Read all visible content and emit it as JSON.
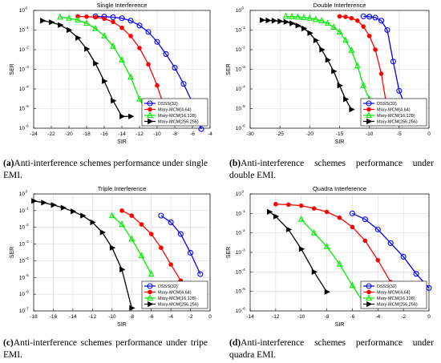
{
  "legend_labels": [
    "DSSS(32)",
    "Mary-MCM(4,64)",
    "Mary-MCM(16,128)",
    "Mary-MCM(256,256)"
  ],
  "series_colors": [
    "#0000ff",
    "#ff0000",
    "#00ee00",
    "#000000"
  ],
  "markers": [
    "circle",
    "asterisk",
    "triangle-up",
    "triangle-right"
  ],
  "captions": [
    {
      "tag": "(a)",
      "text": "Anti-interference schemes performance under single EMI."
    },
    {
      "tag": "(b)",
      "text": "Anti-interference schemes performance under double EMI."
    },
    {
      "tag": "(c)",
      "text": "Anti-interference schemes performance under tripe EMI."
    },
    {
      "tag": "(d)",
      "text": "Anti-interference schemes performance under quadra EMI."
    }
  ],
  "chart_data": [
    {
      "type": "line",
      "title": "Single Interference",
      "xlabel": "SIR",
      "ylabel": "SER",
      "xlim": [
        -24,
        -4
      ],
      "xticks": [
        -24,
        -22,
        -20,
        -18,
        -16,
        -14,
        -12,
        -10,
        -8,
        -6,
        -4
      ],
      "yscale": "log",
      "ylim_exp": [
        -6,
        0
      ],
      "grid": true,
      "legend": "bottom-right",
      "series": [
        {
          "name": "DSSS(32)",
          "x": [
            -17,
            -16,
            -15,
            -14,
            -13,
            -12,
            -11,
            -10,
            -9,
            -8,
            -7,
            -6,
            -5
          ],
          "y": [
            0.5,
            0.48,
            0.45,
            0.4,
            0.3,
            0.17,
            0.08,
            0.025,
            0.006,
            0.0012,
            0.00018,
            2e-05,
            9e-07
          ]
        },
        {
          "name": "Mary-MCM(4,64)",
          "x": [
            -19,
            -18,
            -17,
            -16,
            -15,
            -14,
            -13,
            -12,
            -11,
            -10,
            -9
          ],
          "y": [
            0.5,
            0.48,
            0.45,
            0.38,
            0.26,
            0.13,
            0.05,
            0.012,
            0.0018,
            0.00015,
            6e-06
          ]
        },
        {
          "name": "Mary-MCM(16,128)",
          "x": [
            -21,
            -20,
            -19,
            -18,
            -17,
            -16,
            -15,
            -14,
            -13,
            -12,
            -11
          ],
          "y": [
            0.45,
            0.4,
            0.32,
            0.22,
            0.12,
            0.05,
            0.015,
            0.003,
            0.0004,
            3e-05,
            5e-06
          ]
        },
        {
          "name": "Mary-MCM(256,256)",
          "x": [
            -23,
            -22,
            -21,
            -20,
            -19,
            -18,
            -17,
            -16,
            -15,
            -14,
            -13
          ],
          "y": [
            0.3,
            0.25,
            0.18,
            0.1,
            0.04,
            0.011,
            0.002,
            0.00025,
            2.5e-05,
            4e-06,
            4e-06
          ]
        }
      ]
    },
    {
      "type": "line",
      "title": "Double Interference",
      "xlabel": "SIR",
      "ylabel": "SER",
      "xlim": [
        -30,
        0
      ],
      "xticks": [
        -30,
        -25,
        -20,
        -15,
        -10,
        -5,
        0
      ],
      "yscale": "log",
      "ylim_exp": [
        -6,
        0
      ],
      "grid": true,
      "legend": "bottom-right",
      "series": [
        {
          "name": "DSSS(32)",
          "x": [
            -11,
            -10,
            -9,
            -8,
            -7,
            -6,
            -5,
            -4
          ],
          "y": [
            0.5,
            0.48,
            0.43,
            0.3,
            0.1,
            0.0025,
            8e-05,
            1.5e-05
          ]
        },
        {
          "name": "Mary-MCM(4,64)",
          "x": [
            -15,
            -14,
            -13,
            -12,
            -11,
            -10,
            -9,
            -8,
            -7
          ],
          "y": [
            0.5,
            0.47,
            0.4,
            0.3,
            0.15,
            0.05,
            0.01,
            0.0006,
            9e-06
          ]
        },
        {
          "name": "Mary-MCM(16,128)",
          "x": [
            -24,
            -23,
            -22,
            -21,
            -20,
            -19,
            -18,
            -17,
            -16,
            -15,
            -14,
            -13,
            -12,
            -11,
            -10
          ],
          "y": [
            0.5,
            0.48,
            0.46,
            0.43,
            0.4,
            0.35,
            0.3,
            0.22,
            0.14,
            0.08,
            0.03,
            0.009,
            0.0015,
            0.00015,
            3e-05
          ]
        },
        {
          "name": "Mary-MCM(256,256)",
          "x": [
            -28,
            -27,
            -26,
            -25,
            -24,
            -23,
            -22,
            -21,
            -20,
            -19,
            -18,
            -17,
            -16,
            -15,
            -14,
            -13
          ],
          "y": [
            0.32,
            0.31,
            0.3,
            0.28,
            0.26,
            0.22,
            0.17,
            0.12,
            0.07,
            0.03,
            0.01,
            0.003,
            0.0008,
            0.00015,
            3e-05,
            9e-06
          ]
        }
      ]
    },
    {
      "type": "line",
      "title": "Triple Interference",
      "xlabel": "SIR",
      "ylabel": "SER",
      "xlim": [
        -18,
        0
      ],
      "xticks": [
        -18,
        -16,
        -14,
        -12,
        -10,
        -8,
        -6,
        -4,
        -2,
        0
      ],
      "yscale": "log",
      "ylim_exp": [
        -7,
        0
      ],
      "grid": true,
      "legend": "bottom-right",
      "series": [
        {
          "name": "DSSS(32)",
          "x": [
            -5,
            -4,
            -3,
            -2,
            -1
          ],
          "y": [
            0.05,
            0.02,
            0.004,
            0.0003,
            1.6e-05
          ]
        },
        {
          "name": "Mary-MCM(4,64)",
          "x": [
            -9,
            -8,
            -7,
            -6,
            -5,
            -4,
            -3
          ],
          "y": [
            0.1,
            0.05,
            0.015,
            0.004,
            0.0006,
            6e-05,
            6.5e-06
          ]
        },
        {
          "name": "Mary-MCM(16,128)",
          "x": [
            -10,
            -9,
            -8,
            -7,
            -6
          ],
          "y": [
            0.05,
            0.015,
            0.002,
            0.0002,
            1.6e-05
          ]
        },
        {
          "name": "Mary-MCM(256,256)",
          "x": [
            -18,
            -17,
            -16,
            -15,
            -14,
            -13,
            -12,
            -11,
            -10,
            -9,
            -8
          ],
          "y": [
            0.38,
            0.3,
            0.22,
            0.15,
            0.09,
            0.05,
            0.02,
            0.005,
            0.0006,
            3e-05,
            1.5e-07
          ]
        }
      ]
    },
    {
      "type": "line",
      "title": "Quadra Interference",
      "xlabel": "SIR",
      "ylabel": "SER",
      "xlim": [
        -14,
        0
      ],
      "xticks": [
        -14,
        -12,
        -10,
        -8,
        -6,
        -4,
        -2,
        0
      ],
      "yscale": "log",
      "ylim_exp": [
        -6,
        0
      ],
      "grid": true,
      "legend": "bottom-right",
      "series": [
        {
          "name": "DSSS(32)",
          "x": [
            -6,
            -5,
            -4,
            -3,
            -2,
            -1,
            0
          ],
          "y": [
            0.1,
            0.05,
            0.015,
            0.003,
            0.0006,
            8e-05,
            1.5e-05
          ]
        },
        {
          "name": "Mary-MCM(4,64)",
          "x": [
            -12,
            -11,
            -10,
            -9,
            -8,
            -7,
            -6,
            -5,
            -4,
            -3,
            -2
          ],
          "y": [
            0.3,
            0.28,
            0.25,
            0.18,
            0.12,
            0.06,
            0.02,
            0.004,
            0.0004,
            3e-05,
            2e-06
          ]
        },
        {
          "name": "Mary-MCM(16,128)",
          "x": [
            -10,
            -9,
            -8,
            -7,
            -6,
            -5
          ],
          "y": [
            0.05,
            0.01,
            0.002,
            0.00025,
            2e-05,
            2e-06
          ]
        },
        {
          "name": "Mary-MCM(256,256)",
          "x": [
            -12.5,
            -12,
            -11,
            -10,
            -9,
            -8
          ],
          "y": [
            0.12,
            0.07,
            0.015,
            0.0015,
            0.0001,
            9.5e-06
          ]
        }
      ]
    }
  ]
}
